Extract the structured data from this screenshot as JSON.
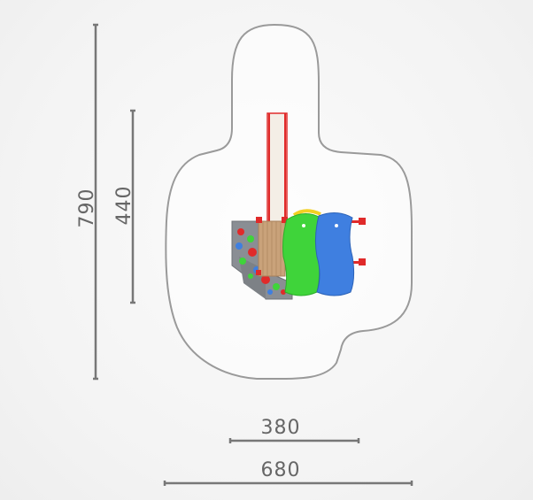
{
  "dimensions": {
    "total_depth": "790",
    "structure_depth": "440",
    "structure_width": "380",
    "total_width": "680"
  },
  "colors": {
    "dimension_line": "#777777",
    "zone_outline": "#9a9a9a",
    "panel_green": "#3fd43a",
    "panel_blue": "#3f7fe0",
    "post_red": "#e02a2a",
    "wall_grey": "#8a8e94",
    "deck_wood": "#c9a27a"
  }
}
